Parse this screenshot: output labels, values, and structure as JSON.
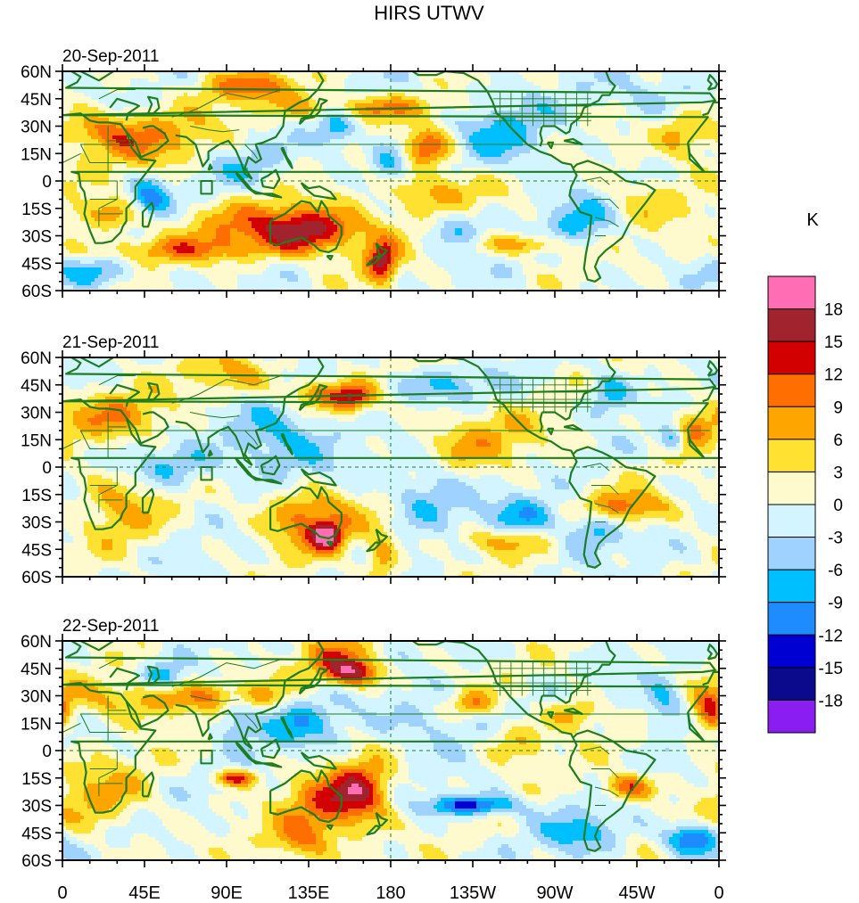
{
  "chart_data": {
    "type": "heatmap",
    "title": "HIRS UTWV",
    "units_label": "K",
    "colorbar": {
      "levels": [
        -18,
        -15,
        -12,
        -9,
        -6,
        -3,
        0,
        3,
        6,
        9,
        12,
        15,
        18
      ],
      "colors": [
        "#8a1ef0",
        "#0a0a8c",
        "#0000d2",
        "#1e8cff",
        "#00bfff",
        "#a0d2ff",
        "#d2f5ff",
        "#fffacd",
        "#ffe132",
        "#ffa500",
        "#ff6e00",
        "#d20000",
        "#a0232d",
        "#ff6eb4"
      ],
      "tick_labels": [
        "18",
        "15",
        "12",
        "9",
        "6",
        "3",
        "0",
        "-3",
        "-6",
        "-9",
        "-12",
        "-15",
        "-18"
      ]
    },
    "x_axis": {
      "range": [
        0,
        360
      ],
      "tick_values": [
        0,
        45,
        90,
        135,
        180,
        225,
        270,
        315,
        360
      ],
      "tick_labels": [
        "0",
        "45E",
        "90E",
        "135E",
        "180",
        "135W",
        "90W",
        "45W",
        "0"
      ]
    },
    "y_axis": {
      "range": [
        -60,
        60
      ],
      "tick_values": [
        60,
        45,
        30,
        15,
        0,
        -15,
        -30,
        -45,
        -60
      ],
      "tick_labels": [
        "60N",
        "45N",
        "30N",
        "15N",
        "0",
        "15S",
        "30S",
        "45S",
        "60S"
      ]
    },
    "reference_lines": [
      "equator (dashed)",
      "date line 180 (dashed)"
    ],
    "coastline_color": "#1e7d1e",
    "panels": [
      {
        "date": "20-Sep-2011",
        "features": [
          {
            "lon": 60,
            "lat": 20,
            "value": 7,
            "sx": 30,
            "sy": 12
          },
          {
            "lon": 20,
            "lat": 28,
            "value": 8,
            "sx": 18,
            "sy": 8
          },
          {
            "lon": 105,
            "lat": 52,
            "value": 9,
            "sx": 22,
            "sy": 6
          },
          {
            "lon": 160,
            "lat": 40,
            "value": 10,
            "sx": 30,
            "sy": 5
          },
          {
            "lon": 200,
            "lat": 18,
            "value": 12,
            "sx": 10,
            "sy": 7
          },
          {
            "lon": 205,
            "lat": -5,
            "value": 8,
            "sx": 20,
            "sy": 10
          },
          {
            "lon": 120,
            "lat": -25,
            "value": 9,
            "sx": 40,
            "sy": 10
          },
          {
            "lon": 135,
            "lat": -28,
            "value": 10,
            "sx": 18,
            "sy": 8
          },
          {
            "lon": 175,
            "lat": -45,
            "value": 15,
            "sx": 6,
            "sy": 8
          },
          {
            "lon": 25,
            "lat": -18,
            "value": 8,
            "sx": 14,
            "sy": 6
          },
          {
            "lon": 60,
            "lat": -38,
            "value": 7,
            "sx": 40,
            "sy": 5
          },
          {
            "lon": 255,
            "lat": -35,
            "value": 9,
            "sx": 18,
            "sy": 4
          },
          {
            "lon": 340,
            "lat": 25,
            "value": 8,
            "sx": 10,
            "sy": 10
          },
          {
            "lon": 315,
            "lat": -10,
            "value": 5,
            "sx": 20,
            "sy": 10
          },
          {
            "lon": 48,
            "lat": -10,
            "value": -11,
            "sx": 8,
            "sy": 8
          },
          {
            "lon": 150,
            "lat": 30,
            "value": -8,
            "sx": 8,
            "sy": 12
          },
          {
            "lon": 180,
            "lat": 10,
            "value": -9,
            "sx": 8,
            "sy": 8
          },
          {
            "lon": 215,
            "lat": -25,
            "value": -8,
            "sx": 12,
            "sy": 8
          },
          {
            "lon": 285,
            "lat": -20,
            "value": -7,
            "sx": 14,
            "sy": 12
          },
          {
            "lon": 240,
            "lat": 25,
            "value": -6,
            "sx": 20,
            "sy": 15
          },
          {
            "lon": 95,
            "lat": 10,
            "value": -6,
            "sx": 20,
            "sy": 10
          },
          {
            "lon": 330,
            "lat": 45,
            "value": -5,
            "sx": 20,
            "sy": 10
          },
          {
            "lon": 20,
            "lat": -50,
            "value": -7,
            "sx": 15,
            "sy": 6
          }
        ]
      },
      {
        "date": "21-Sep-2011",
        "features": [
          {
            "lon": 30,
            "lat": 28,
            "value": 7,
            "sx": 25,
            "sy": 10
          },
          {
            "lon": 95,
            "lat": 50,
            "value": 8,
            "sx": 15,
            "sy": 8
          },
          {
            "lon": 140,
            "lat": 40,
            "value": 10,
            "sx": 12,
            "sy": 6
          },
          {
            "lon": 160,
            "lat": 38,
            "value": 12,
            "sx": 8,
            "sy": 5
          },
          {
            "lon": 135,
            "lat": -28,
            "value": 11,
            "sx": 18,
            "sy": 12
          },
          {
            "lon": 145,
            "lat": -38,
            "value": 15,
            "sx": 6,
            "sy": 5
          },
          {
            "lon": 175,
            "lat": -50,
            "value": 9,
            "sx": 6,
            "sy": 10
          },
          {
            "lon": 230,
            "lat": 15,
            "value": 6,
            "sx": 25,
            "sy": 12
          },
          {
            "lon": 310,
            "lat": -22,
            "value": 10,
            "sx": 18,
            "sy": 6
          },
          {
            "lon": 345,
            "lat": 20,
            "value": 8,
            "sx": 8,
            "sy": 8
          },
          {
            "lon": 30,
            "lat": -20,
            "value": 7,
            "sx": 15,
            "sy": 15
          },
          {
            "lon": 240,
            "lat": -40,
            "value": 7,
            "sx": 20,
            "sy": 5
          },
          {
            "lon": 120,
            "lat": 15,
            "value": -8,
            "sx": 20,
            "sy": 15
          },
          {
            "lon": 60,
            "lat": 0,
            "value": -6,
            "sx": 20,
            "sy": 8
          },
          {
            "lon": 200,
            "lat": -15,
            "value": -7,
            "sx": 15,
            "sy": 12
          },
          {
            "lon": 255,
            "lat": -28,
            "value": -8,
            "sx": 15,
            "sy": 8
          },
          {
            "lon": 290,
            "lat": -35,
            "value": -8,
            "sx": 10,
            "sy": 8
          },
          {
            "lon": 300,
            "lat": 40,
            "value": -8,
            "sx": 8,
            "sy": 8
          },
          {
            "lon": 210,
            "lat": 45,
            "value": -6,
            "sx": 20,
            "sy": 6
          },
          {
            "lon": 335,
            "lat": 15,
            "value": -10,
            "sx": 5,
            "sy": 5
          }
        ]
      },
      {
        "date": "22-Sep-2011",
        "features": [
          {
            "lon": 40,
            "lat": 28,
            "value": 8,
            "sx": 30,
            "sy": 8
          },
          {
            "lon": 160,
            "lat": 42,
            "value": 14,
            "sx": 10,
            "sy": 5
          },
          {
            "lon": 150,
            "lat": 50,
            "value": 9,
            "sx": 15,
            "sy": 8
          },
          {
            "lon": 95,
            "lat": 30,
            "value": 8,
            "sx": 20,
            "sy": 6
          },
          {
            "lon": 95,
            "lat": -15,
            "value": 14,
            "sx": 8,
            "sy": 3
          },
          {
            "lon": 150,
            "lat": -30,
            "value": 12,
            "sx": 18,
            "sy": 12
          },
          {
            "lon": 165,
            "lat": -20,
            "value": 10,
            "sx": 10,
            "sy": 10
          },
          {
            "lon": 130,
            "lat": -50,
            "value": 9,
            "sx": 12,
            "sy": 8
          },
          {
            "lon": 310,
            "lat": -20,
            "value": 12,
            "sx": 10,
            "sy": 5
          },
          {
            "lon": 355,
            "lat": 20,
            "value": 12,
            "sx": 6,
            "sy": 8
          },
          {
            "lon": 225,
            "lat": 25,
            "value": 9,
            "sx": 8,
            "sy": 5
          },
          {
            "lon": 250,
            "lat": 5,
            "value": 7,
            "sx": 12,
            "sy": 8
          },
          {
            "lon": 20,
            "lat": -25,
            "value": 6,
            "sx": 20,
            "sy": 15
          },
          {
            "lon": 280,
            "lat": 20,
            "value": 8,
            "sx": 10,
            "sy": 6
          },
          {
            "lon": 225,
            "lat": -30,
            "value": -14,
            "sx": 18,
            "sy": 4
          },
          {
            "lon": 345,
            "lat": -48,
            "value": -14,
            "sx": 10,
            "sy": 6
          },
          {
            "lon": 95,
            "lat": 20,
            "value": -9,
            "sx": 8,
            "sy": 10
          },
          {
            "lon": 55,
            "lat": 40,
            "value": -9,
            "sx": 8,
            "sy": 5
          },
          {
            "lon": 130,
            "lat": 15,
            "value": -7,
            "sx": 15,
            "sy": 10
          },
          {
            "lon": 285,
            "lat": -45,
            "value": -7,
            "sx": 15,
            "sy": 8
          },
          {
            "lon": 330,
            "lat": 25,
            "value": -8,
            "sx": 8,
            "sy": 10
          },
          {
            "lon": 200,
            "lat": 15,
            "value": -5,
            "sx": 20,
            "sy": 10
          }
        ]
      }
    ]
  }
}
